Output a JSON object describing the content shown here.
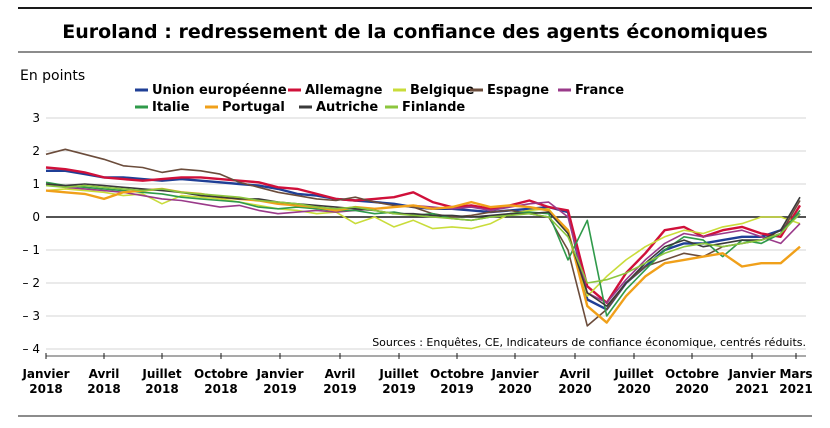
{
  "chart_data": {
    "type": "line",
    "title": "Euroland : redressement de la confiance des agents économiques",
    "ylabel": "En points",
    "source": "Sources : Enquêtes, CE, Indicateurs de confiance économique, centrés réduits.",
    "ylim": [
      -4,
      3
    ],
    "yticks": [
      "3",
      "2",
      "1",
      "0",
      "– 1",
      "– 2",
      "– 3",
      "– 4"
    ],
    "x_start": "Janvier 2018",
    "x_end": "Mars 2021",
    "x_tick_labels": [
      [
        "Janvier",
        "2018"
      ],
      [
        "Avril",
        "2018"
      ],
      [
        "Juillet",
        "2018"
      ],
      [
        "Octobre",
        "2018"
      ],
      [
        "Janvier",
        "2019"
      ],
      [
        "Avril",
        "2019"
      ],
      [
        "Juillet",
        "2019"
      ],
      [
        "Octobre",
        "2019"
      ],
      [
        "Janvier",
        "2020"
      ],
      [
        "Avril",
        "2020"
      ],
      [
        "Juillet",
        "2020"
      ],
      [
        "Octobre",
        "2020"
      ],
      [
        "Janvier",
        "2021"
      ],
      [
        "Mars",
        "2021"
      ]
    ],
    "legend_placement": "top",
    "grid": "horizontal",
    "series": [
      {
        "name": "Union européenne",
        "color": "#1f3f96",
        "values": [
          1.4,
          1.4,
          1.3,
          1.2,
          1.2,
          1.15,
          1.1,
          1.15,
          1.1,
          1.05,
          1.0,
          0.95,
          0.85,
          0.7,
          0.65,
          0.55,
          0.5,
          0.45,
          0.4,
          0.3,
          0.25,
          0.25,
          0.2,
          0.15,
          0.2,
          0.25,
          0.3,
          0.15,
          -2.5,
          -2.8,
          -2.0,
          -1.5,
          -1.0,
          -0.8,
          -0.8,
          -0.7,
          -0.6,
          -0.6,
          -0.4,
          0.1
        ]
      },
      {
        "name": "Allemagne",
        "color": "#d0103a",
        "values": [
          1.5,
          1.45,
          1.35,
          1.2,
          1.15,
          1.1,
          1.15,
          1.2,
          1.2,
          1.15,
          1.1,
          1.05,
          0.9,
          0.85,
          0.7,
          0.55,
          0.5,
          0.55,
          0.6,
          0.75,
          0.45,
          0.3,
          0.35,
          0.25,
          0.35,
          0.5,
          0.3,
          0.2,
          -2.1,
          -2.6,
          -1.7,
          -1.1,
          -0.4,
          -0.3,
          -0.6,
          -0.4,
          -0.3,
          -0.5,
          -0.6,
          0.35
        ]
      },
      {
        "name": "Belgique",
        "color": "#c9dc3a",
        "values": [
          0.8,
          0.85,
          0.8,
          0.75,
          0.65,
          0.7,
          0.4,
          0.65,
          0.6,
          0.55,
          0.45,
          0.35,
          0.25,
          0.2,
          0.1,
          0.15,
          -0.2,
          0.0,
          -0.3,
          -0.1,
          -0.35,
          -0.3,
          -0.35,
          -0.2,
          0.1,
          0.2,
          0.25,
          -0.5,
          -2.4,
          -1.8,
          -1.3,
          -0.9,
          -0.6,
          -0.4,
          -0.5,
          -0.3,
          -0.2,
          0.0,
          0.0,
          -0.2
        ]
      },
      {
        "name": "Espagne",
        "color": "#6b4c3b",
        "values": [
          1.9,
          2.05,
          1.9,
          1.75,
          1.55,
          1.5,
          1.35,
          1.45,
          1.4,
          1.3,
          1.05,
          0.9,
          0.75,
          0.65,
          0.55,
          0.5,
          0.6,
          0.45,
          0.35,
          0.3,
          0.1,
          0.0,
          0.05,
          0.15,
          0.2,
          0.1,
          0.0,
          -1.0,
          -3.3,
          -2.8,
          -2.0,
          -1.5,
          -1.3,
          -1.1,
          -1.2,
          -0.9,
          -0.8,
          -0.7,
          -0.5,
          0.5
        ]
      },
      {
        "name": "France",
        "color": "#9a3a8a",
        "values": [
          1.0,
          0.9,
          0.85,
          0.8,
          0.75,
          0.65,
          0.55,
          0.5,
          0.4,
          0.3,
          0.35,
          0.2,
          0.1,
          0.15,
          0.2,
          0.15,
          0.2,
          0.25,
          0.3,
          0.35,
          0.3,
          0.25,
          0.3,
          0.2,
          0.3,
          0.4,
          0.45,
          0.0,
          -2.3,
          -2.6,
          -1.9,
          -1.3,
          -0.8,
          -0.5,
          -0.6,
          -0.5,
          -0.4,
          -0.6,
          -0.8,
          -0.2
        ]
      },
      {
        "name": "Italie",
        "color": "#2f9a4a",
        "values": [
          1.05,
          0.95,
          0.9,
          0.85,
          0.8,
          0.75,
          0.7,
          0.6,
          0.55,
          0.5,
          0.45,
          0.3,
          0.25,
          0.3,
          0.25,
          0.2,
          0.2,
          0.1,
          0.15,
          0.05,
          0.1,
          -0.05,
          -0.1,
          0.0,
          0.1,
          0.15,
          0.1,
          -1.3,
          -0.1,
          -3.0,
          -2.2,
          -1.6,
          -1.0,
          -0.6,
          -0.7,
          -1.2,
          -0.7,
          -0.8,
          -0.5,
          0.2
        ]
      },
      {
        "name": "Portugal",
        "color": "#f0a01a",
        "values": [
          0.8,
          0.75,
          0.7,
          0.55,
          0.75,
          0.8,
          0.85,
          0.75,
          0.7,
          0.6,
          0.55,
          0.5,
          0.4,
          0.35,
          0.3,
          0.2,
          0.3,
          0.25,
          0.3,
          0.35,
          0.25,
          0.3,
          0.45,
          0.3,
          0.35,
          0.3,
          0.2,
          -0.4,
          -2.7,
          -3.2,
          -2.4,
          -1.8,
          -1.4,
          -1.3,
          -1.2,
          -1.1,
          -1.5,
          -1.4,
          -1.4,
          -0.9
        ]
      },
      {
        "name": "Autriche",
        "color": "#3a3a3a",
        "values": [
          1.0,
          0.95,
          1.0,
          0.95,
          0.9,
          0.85,
          0.8,
          0.75,
          0.65,
          0.6,
          0.55,
          0.55,
          0.45,
          0.4,
          0.35,
          0.3,
          0.25,
          0.2,
          0.1,
          0.1,
          0.05,
          0.05,
          0.0,
          0.05,
          0.1,
          0.1,
          0.15,
          -0.5,
          -2.3,
          -2.7,
          -2.0,
          -1.4,
          -0.9,
          -0.7,
          -0.9,
          -0.8,
          -0.7,
          -0.7,
          -0.4,
          0.6
        ]
      },
      {
        "name": "Finlande",
        "color": "#8cc63e",
        "values": [
          0.95,
          0.9,
          0.95,
          0.9,
          0.85,
          0.8,
          0.85,
          0.75,
          0.7,
          0.65,
          0.6,
          0.5,
          0.45,
          0.4,
          0.3,
          0.25,
          0.3,
          0.2,
          0.1,
          0.05,
          0.0,
          -0.05,
          -0.1,
          0.0,
          0.05,
          0.1,
          0.0,
          -0.6,
          -2.0,
          -1.9,
          -1.7,
          -1.4,
          -1.1,
          -0.9,
          -0.8,
          -0.9,
          -0.8,
          -0.7,
          -0.5,
          0.1
        ]
      }
    ]
  }
}
